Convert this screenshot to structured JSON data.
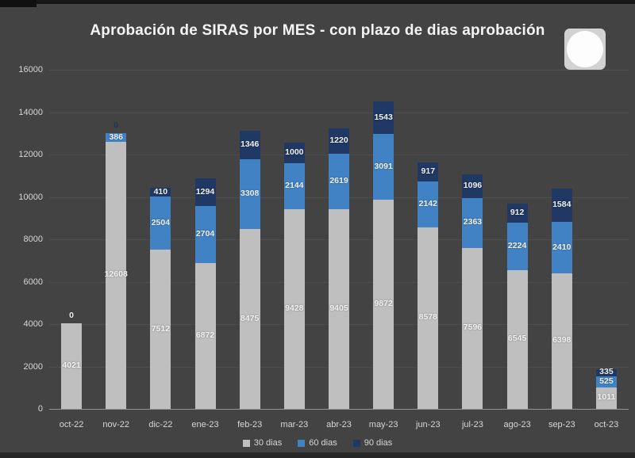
{
  "chart_data": {
    "type": "bar",
    "stacked": true,
    "title": "Aprobación de SIRAS por MES - con plazo de dias aprobación",
    "xlabel": "",
    "ylabel": "",
    "ylim": [
      0,
      16000
    ],
    "yticks": [
      0,
      2000,
      4000,
      6000,
      8000,
      10000,
      12000,
      14000,
      16000
    ],
    "grid": true,
    "legend_position": "bottom",
    "categories": [
      "oct-22",
      "nov-22",
      "dic-22",
      "ene-23",
      "feb-23",
      "mar-23",
      "abr-23",
      "may-23",
      "jun-23",
      "jul-23",
      "ago-23",
      "sep-23",
      "oct-23"
    ],
    "series": [
      {
        "name": "30 dias",
        "color": "#bfbfbf",
        "values": [
          4021,
          12608,
          7512,
          6872,
          8475,
          9428,
          9405,
          9872,
          8578,
          7596,
          6545,
          6398,
          1011
        ]
      },
      {
        "name": "60 dias",
        "color": "#4182c4",
        "values": [
          0,
          386,
          2504,
          2704,
          3308,
          2144,
          2619,
          3091,
          2142,
          2363,
          2224,
          2410,
          525
        ]
      },
      {
        "name": "90 dias",
        "color": "#1f3864",
        "values": [
          0,
          0,
          410,
          1294,
          1346,
          1000,
          1220,
          1543,
          917,
          1096,
          912,
          1584,
          335
        ]
      }
    ],
    "data_labels": [
      [
        "4021",
        "0",
        ""
      ],
      [
        "12608",
        "386",
        "0"
      ],
      [
        "7512",
        "2504",
        "410"
      ],
      [
        "6872",
        "2704",
        "1294"
      ],
      [
        "8475",
        "3308",
        "1346"
      ],
      [
        "9428",
        "2144",
        "1000"
      ],
      [
        "9405",
        "2619",
        "1220"
      ],
      [
        "9872",
        "3091",
        "1543"
      ],
      [
        "8578",
        "2142",
        "917"
      ],
      [
        "7596",
        "2363",
        "1096"
      ],
      [
        "6545",
        "2224",
        "912"
      ],
      [
        "6398",
        "2410",
        "1584"
      ],
      [
        "1011",
        "525",
        "335"
      ]
    ]
  }
}
